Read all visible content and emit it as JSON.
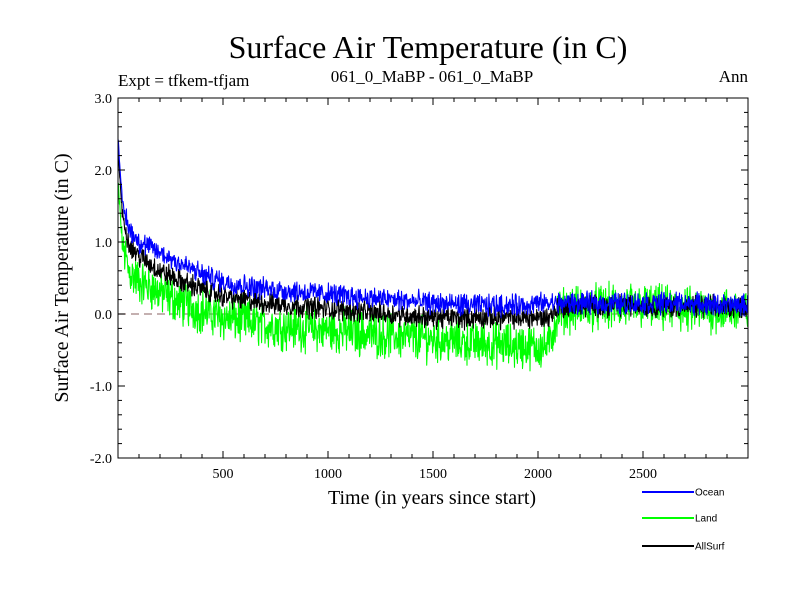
{
  "chart_data": {
    "type": "line",
    "title": "Surface Air Temperature (in C)",
    "subtitle_left": "Expt = tfkem-tfjam",
    "subtitle_center": "061_0_MaBP - 061_0_MaBP",
    "subtitle_right": "Ann",
    "xlabel": "Time (in years since start)",
    "ylabel": "Surface Air Temperature (in C)",
    "xlim": [
      0,
      3000
    ],
    "ylim": [
      -2.0,
      3.0
    ],
    "x_ticks": [
      500,
      1000,
      1500,
      2000,
      2500
    ],
    "x_tick_labels": [
      "500",
      "1000",
      "1500",
      "2000",
      "2500"
    ],
    "y_ticks": [
      -2.0,
      -1.0,
      0.0,
      1.0,
      2.0,
      3.0
    ],
    "y_tick_labels": [
      "-2.0",
      "-1.0",
      "0.0",
      "1.0",
      "2.0",
      "3.0"
    ],
    "reference_line": {
      "y": 0.0,
      "style": "dashed",
      "color": "#a08080"
    },
    "legend_position": "bottom-right",
    "series": [
      {
        "name": "Land",
        "color": "#00ff00",
        "x": [
          0,
          20,
          50,
          100,
          200,
          300,
          400,
          500,
          700,
          900,
          1100,
          1300,
          1500,
          1700,
          1900,
          2050,
          2100,
          2300,
          2500,
          2700,
          2900,
          3000
        ],
        "y": [
          1.8,
          1.0,
          0.6,
          0.45,
          0.3,
          0.15,
          0.05,
          -0.05,
          -0.15,
          -0.2,
          -0.25,
          -0.3,
          -0.35,
          -0.4,
          -0.45,
          -0.45,
          0.05,
          0.1,
          0.1,
          0.05,
          0.05,
          0.05
        ],
        "noise_amplitude": 0.25
      },
      {
        "name": "AllSurf",
        "color": "#000000",
        "x": [
          0,
          20,
          50,
          100,
          200,
          300,
          400,
          500,
          700,
          900,
          1100,
          1300,
          1500,
          1700,
          1900,
          2050,
          2100,
          2300,
          2500,
          2700,
          2900,
          3000
        ],
        "y": [
          2.3,
          1.4,
          1.0,
          0.8,
          0.6,
          0.45,
          0.35,
          0.25,
          0.15,
          0.1,
          0.05,
          0.0,
          -0.05,
          -0.05,
          -0.05,
          -0.05,
          0.1,
          0.12,
          0.12,
          0.1,
          0.1,
          0.1
        ],
        "noise_amplitude": 0.12
      },
      {
        "name": "Ocean",
        "color": "#0000ff",
        "x": [
          0,
          20,
          50,
          100,
          200,
          300,
          400,
          500,
          700,
          900,
          1100,
          1300,
          1500,
          1700,
          1900,
          2050,
          2100,
          2300,
          2500,
          2700,
          2900,
          3000
        ],
        "y": [
          2.5,
          1.55,
          1.2,
          1.0,
          0.85,
          0.7,
          0.55,
          0.45,
          0.35,
          0.3,
          0.25,
          0.2,
          0.15,
          0.12,
          0.12,
          0.15,
          0.15,
          0.15,
          0.15,
          0.15,
          0.12,
          0.12
        ],
        "noise_amplitude": 0.12
      }
    ],
    "legend_order": [
      "Ocean",
      "Land",
      "AllSurf"
    ]
  }
}
